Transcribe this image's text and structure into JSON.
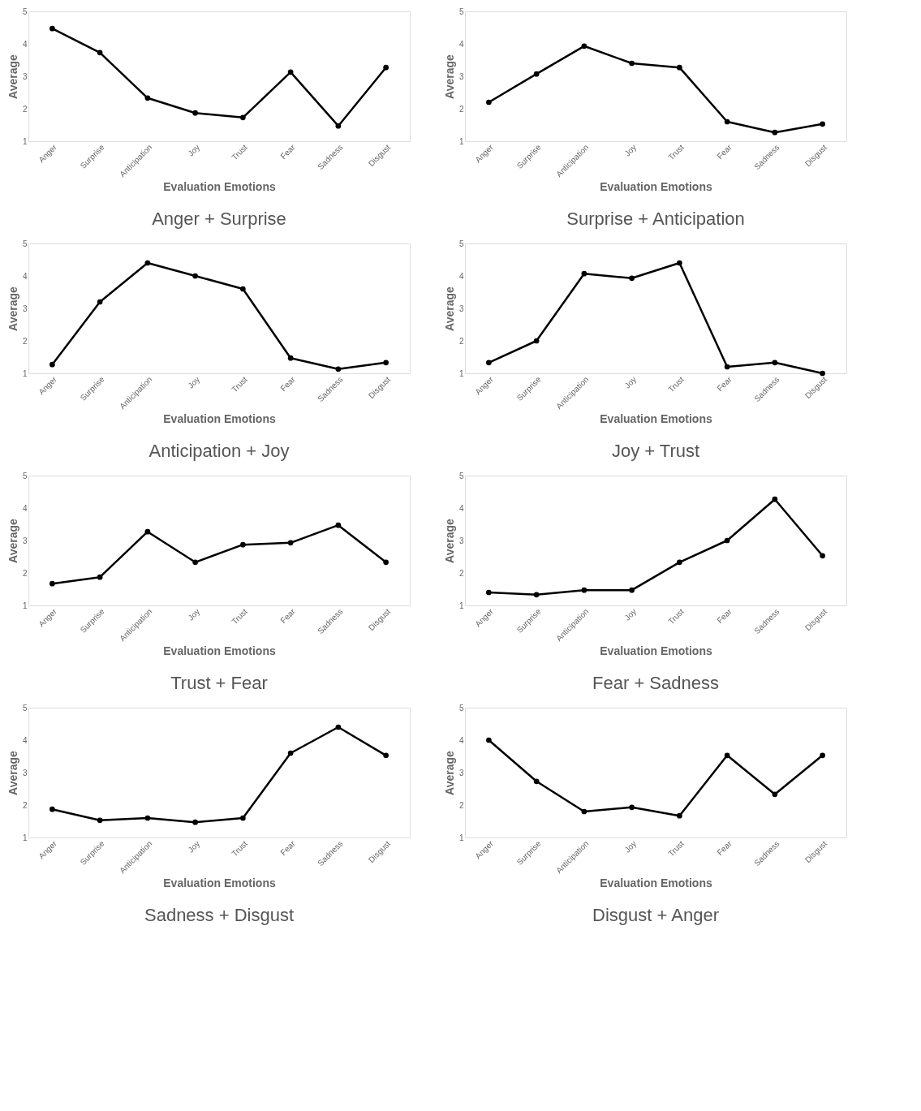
{
  "chart_data": [
    {
      "type": "line",
      "title": "Anger + Surprise",
      "xlabel": "Evaluation Emotions",
      "ylabel": "Average",
      "categories": [
        "Anger",
        "Surprise",
        "Anticipation",
        "Joy",
        "Trust",
        "Fear",
        "Sadness",
        "Disgust"
      ],
      "values": [
        4.47,
        3.73,
        2.33,
        1.87,
        1.73,
        3.13,
        1.47,
        3.27
      ],
      "color": "#000000",
      "marker": "circle",
      "ylim": [
        1,
        5
      ],
      "yticks": [
        1,
        2,
        3,
        4,
        5
      ]
    },
    {
      "type": "line",
      "title": "Surprise + Anticipation",
      "xlabel": "Evaluation Emotions",
      "ylabel": "Average",
      "categories": [
        "Anger",
        "Surprise",
        "Anticipation",
        "Joy",
        "Trust",
        "Fear",
        "Sadness",
        "Disgust"
      ],
      "values": [
        2.2,
        3.07,
        3.93,
        3.4,
        3.27,
        1.6,
        1.27,
        1.53
      ],
      "color": "#000000",
      "marker": "circle",
      "ylim": [
        1,
        5
      ],
      "yticks": [
        1,
        2,
        3,
        4,
        5
      ]
    },
    {
      "type": "line",
      "title": "Anticipation + Joy",
      "xlabel": "Evaluation Emotions",
      "ylabel": "Average",
      "categories": [
        "Anger",
        "Surprise",
        "Anticipation",
        "Joy",
        "Trust",
        "Fear",
        "Sadness",
        "Disgust"
      ],
      "values": [
        1.27,
        3.2,
        4.4,
        4.0,
        3.6,
        1.47,
        1.13,
        1.33
      ],
      "color": "#000000",
      "marker": "circle",
      "ylim": [
        1,
        5
      ],
      "yticks": [
        1,
        2,
        3,
        4,
        5
      ]
    },
    {
      "type": "line",
      "title": "Joy + Trust",
      "xlabel": "Evaluation Emotions",
      "ylabel": "Average",
      "categories": [
        "Anger",
        "Surprise",
        "Anticipation",
        "Joy",
        "Trust",
        "Fear",
        "Sadness",
        "Disgust"
      ],
      "values": [
        1.33,
        2.0,
        4.07,
        3.93,
        4.4,
        1.2,
        1.33,
        1.0
      ],
      "color": "#000000",
      "marker": "circle",
      "ylim": [
        1,
        5
      ],
      "yticks": [
        1,
        2,
        3,
        4,
        5
      ]
    },
    {
      "type": "line",
      "title": "Trust + Fear",
      "xlabel": "Evaluation Emotions",
      "ylabel": "Average",
      "categories": [
        "Anger",
        "Surprise",
        "Anticipation",
        "Joy",
        "Trust",
        "Fear",
        "Sadness",
        "Disgust"
      ],
      "values": [
        1.67,
        1.87,
        3.27,
        2.33,
        2.87,
        2.93,
        3.47,
        2.33
      ],
      "color": "#000000",
      "marker": "circle",
      "ylim": [
        1,
        5
      ],
      "yticks": [
        1,
        2,
        3,
        4,
        5
      ]
    },
    {
      "type": "line",
      "title": "Fear + Sadness",
      "xlabel": "Evaluation Emotions",
      "ylabel": "Average",
      "categories": [
        "Anger",
        "Surprise",
        "Anticipation",
        "Joy",
        "Trust",
        "Fear",
        "Sadness",
        "Disgust"
      ],
      "values": [
        1.4,
        1.33,
        1.47,
        1.47,
        2.33,
        3.0,
        4.27,
        2.53
      ],
      "color": "#000000",
      "marker": "circle",
      "ylim": [
        1,
        5
      ],
      "yticks": [
        1,
        2,
        3,
        4,
        5
      ]
    },
    {
      "type": "line",
      "title": "Sadness + Disgust",
      "xlabel": "Evaluation Emotions",
      "ylabel": "Average",
      "categories": [
        "Anger",
        "Surprise",
        "Anticipation",
        "Joy",
        "Trust",
        "Fear",
        "Sadness",
        "Disgust"
      ],
      "values": [
        1.87,
        1.53,
        1.6,
        1.47,
        1.6,
        3.6,
        4.4,
        3.53
      ],
      "color": "#000000",
      "marker": "circle",
      "ylim": [
        1,
        5
      ],
      "yticks": [
        1,
        2,
        3,
        4,
        5
      ]
    },
    {
      "type": "line",
      "title": "Disgust + Anger",
      "xlabel": "Evaluation Emotions",
      "ylabel": "Average",
      "categories": [
        "Anger",
        "Surprise",
        "Anticipation",
        "Joy",
        "Trust",
        "Fear",
        "Sadness",
        "Disgust"
      ],
      "values": [
        4.0,
        2.73,
        1.8,
        1.93,
        1.67,
        3.53,
        2.33,
        3.53
      ],
      "color": "#000000",
      "marker": "circle",
      "ylim": [
        1,
        5
      ],
      "yticks": [
        1,
        2,
        3,
        4,
        5
      ]
    }
  ]
}
